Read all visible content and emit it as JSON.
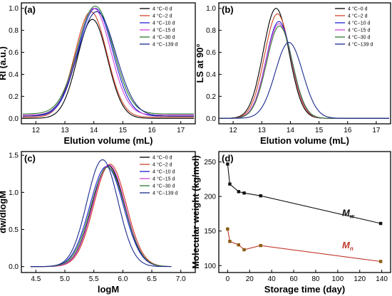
{
  "colors": {
    "4 °C−0 d": "#000000",
    "4 °C−2 d": "#d2442a",
    "4 °C−10 d": "#1f1fd6",
    "4 °C−15 d": "#d040d8",
    "4 °C−30 d": "#2d7b2d",
    "4 °C−139 d": "#1a2a8c"
  },
  "chart_data": [
    {
      "panel": "(a)",
      "type": "line",
      "xlabel": "Elution volume (mL)",
      "ylabel": "RI (a.u.)",
      "xlim": [
        11.5,
        17.5
      ],
      "ylim": [
        -0.05,
        1.05
      ],
      "xticks": [
        "12",
        "13",
        "14",
        "15",
        "16",
        "17"
      ],
      "yticks": [
        "0.0",
        "0.2",
        "0.4",
        "0.6",
        "0.8",
        "1.0"
      ],
      "legend_position": "top-right",
      "series": [
        {
          "name": "4 °C−0 d",
          "peak": 13.95,
          "height": 0.9,
          "sigma": 0.52,
          "baseline": 0.0
        },
        {
          "name": "4 °C−2 d",
          "peak": 13.9,
          "height": 0.96,
          "sigma": 0.55,
          "baseline": 0.01
        },
        {
          "name": "4 °C−10 d",
          "peak": 14.05,
          "height": 0.98,
          "sigma": 0.6,
          "baseline": 0.02
        },
        {
          "name": "4 °C−15 d",
          "peak": 14.0,
          "height": 0.97,
          "sigma": 0.58,
          "baseline": 0.03
        },
        {
          "name": "4 °C−30 d",
          "peak": 14.05,
          "height": 0.98,
          "sigma": 0.62,
          "baseline": 0.04
        },
        {
          "name": "4 °C−139 d",
          "peak": 14.1,
          "height": 0.95,
          "sigma": 0.65,
          "baseline": 0.02
        }
      ]
    },
    {
      "panel": "(b)",
      "type": "line",
      "xlabel": "Elution volume (mL)",
      "ylabel": "LS at 90°",
      "xlim": [
        11.5,
        17.5
      ],
      "ylim": [
        -0.05,
        1.05
      ],
      "xticks": [
        "12",
        "13",
        "14",
        "15",
        "16",
        "17"
      ],
      "yticks": [
        "0.0",
        "0.2",
        "0.4",
        "0.6",
        "0.8",
        "1.0"
      ],
      "legend_position": "top-right",
      "series": [
        {
          "name": "4 °C−0 d",
          "peak": 13.5,
          "height": 1.0,
          "sigma": 0.45,
          "baseline": 0.0
        },
        {
          "name": "4 °C−2 d",
          "peak": 13.55,
          "height": 0.95,
          "sigma": 0.45,
          "baseline": 0.0
        },
        {
          "name": "4 °C−10 d",
          "peak": 13.6,
          "height": 0.88,
          "sigma": 0.45,
          "baseline": 0.0
        },
        {
          "name": "4 °C−15 d",
          "peak": 13.6,
          "height": 0.86,
          "sigma": 0.45,
          "baseline": 0.0
        },
        {
          "name": "4 °C−30 d",
          "peak": 13.62,
          "height": 0.84,
          "sigma": 0.45,
          "baseline": 0.0
        },
        {
          "name": "4 °C−139 d",
          "peak": 13.95,
          "height": 0.69,
          "sigma": 0.48,
          "baseline": 0.0
        }
      ]
    },
    {
      "panel": "(c)",
      "type": "line",
      "xlabel": "logM",
      "ylabel": "dw/dlogM",
      "xlim": [
        4.25,
        7.25
      ],
      "ylim": [
        -0.08,
        1.55
      ],
      "xticks": [
        "4.5",
        "5.0",
        "5.5",
        "6.0",
        "6.5",
        "7.0"
      ],
      "yticks": [
        "0.0",
        "0.5",
        "1.0",
        "1.5"
      ],
      "legend_position": "top-right",
      "series": [
        {
          "name": "4 °C−0 d",
          "peak": 5.75,
          "height": 1.36,
          "sigma": 0.28
        },
        {
          "name": "4 °C−2 d",
          "peak": 5.78,
          "height": 1.38,
          "sigma": 0.28
        },
        {
          "name": "4 °C−10 d",
          "peak": 5.72,
          "height": 1.35,
          "sigma": 0.29
        },
        {
          "name": "4 °C−15 d",
          "peak": 5.76,
          "height": 1.37,
          "sigma": 0.28
        },
        {
          "name": "4 °C−30 d",
          "peak": 5.74,
          "height": 1.34,
          "sigma": 0.29
        },
        {
          "name": "4 °C−139 d",
          "peak": 5.65,
          "height": 1.44,
          "sigma": 0.27
        }
      ]
    },
    {
      "panel": "(d)",
      "type": "line",
      "xlabel": "Storage time (day)",
      "ylabel": "Molecular weight (kg/mol)",
      "xlim": [
        -8,
        148
      ],
      "ylim": [
        90,
        265
      ],
      "xticks": [
        "0",
        "20",
        "40",
        "60",
        "80",
        "100",
        "120",
        "140"
      ],
      "yticks": [
        "100",
        "150",
        "200",
        "250"
      ],
      "series": [
        {
          "name": "Mw",
          "x": [
            0,
            2,
            10,
            15,
            30,
            139
          ],
          "values": [
            247,
            218,
            207,
            205,
            201,
            161
          ]
        },
        {
          "name": "Mn",
          "x": [
            0,
            2,
            10,
            15,
            30,
            139
          ],
          "values": [
            153,
            135,
            130,
            123,
            129,
            106
          ]
        }
      ]
    }
  ]
}
